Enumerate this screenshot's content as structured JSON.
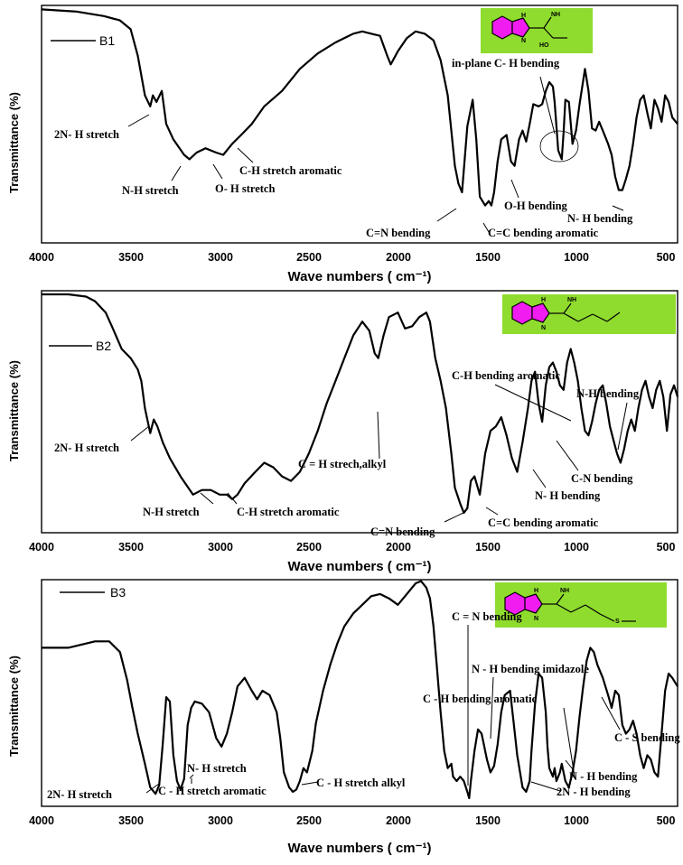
{
  "chart_data": [
    {
      "type": "line",
      "legend": "B1",
      "xlabel": "Wave numbers ( cm⁻¹)",
      "ylabel": "Transmittance (%)",
      "xlim": [
        4000,
        430
      ],
      "ylim": [
        0,
        100
      ],
      "xticks": [
        "4000",
        "3500",
        "3000",
        "2500",
        "2000",
        "1500",
        "1000",
        "500"
      ],
      "annotations": [
        "2N- H stretch",
        "N-H stretch",
        "O- H stretch",
        "C-H stretch aromatic",
        "C=N bending",
        "C=C bending aromatic",
        "O-H bending",
        "N- H bending",
        "in-plane C- H bending"
      ],
      "series": [
        {
          "x": [
            4000,
            3800,
            3650,
            3560,
            3500,
            3460,
            3420,
            3390,
            3375,
            3355,
            3325,
            3300,
            3260,
            3200,
            3170,
            3130,
            3080,
            3020,
            2980,
            2930,
            2880,
            2820,
            2750,
            2650,
            2550,
            2450,
            2350,
            2250,
            2200,
            2150,
            2100,
            2060,
            2040,
            2000,
            1950,
            1900,
            1850,
            1800,
            1760,
            1720,
            1680,
            1660,
            1640,
            1610,
            1580,
            1560,
            1540,
            1510,
            1490,
            1475,
            1460,
            1440,
            1420,
            1390,
            1365,
            1345,
            1320,
            1300,
            1280,
            1260,
            1240,
            1210,
            1190,
            1170,
            1150,
            1130,
            1120,
            1100,
            1080,
            1070,
            1060,
            1040,
            1020,
            1000,
            980,
            950,
            930,
            910,
            890,
            870,
            850,
            820,
            800,
            780,
            760,
            740,
            720,
            700,
            680,
            660,
            640,
            620,
            600,
            580,
            560,
            540,
            520,
            500,
            480,
            460,
            430
          ],
          "y": [
            99,
            98,
            96,
            94,
            90,
            78,
            60,
            55,
            60,
            57,
            62,
            47,
            40,
            33,
            31,
            34,
            36,
            34,
            33,
            38,
            42,
            47,
            55,
            62,
            72,
            79,
            84,
            88,
            89,
            88,
            87,
            78,
            74,
            80,
            86,
            89,
            88,
            85,
            76,
            60,
            28,
            20,
            16,
            46,
            58,
            40,
            14,
            10,
            12,
            10,
            16,
            30,
            40,
            42,
            30,
            28,
            40,
            44,
            39,
            47,
            56,
            55,
            56,
            62,
            66,
            64,
            57,
            35,
            31,
            43,
            58,
            57,
            38,
            44,
            56,
            72,
            62,
            45,
            44,
            48,
            44,
            38,
            33,
            23,
            17,
            17,
            22,
            28,
            38,
            50,
            58,
            60,
            52,
            45,
            58,
            54,
            48,
            60,
            57,
            50,
            47
          ]
        }
      ]
    },
    {
      "type": "line",
      "legend": "B2",
      "xlabel": "Wave numbers ( cm⁻¹)",
      "ylabel": "Transmittance (%)",
      "xlim": [
        4000,
        430
      ],
      "ylim": [
        0,
        100
      ],
      "xticks": [
        "4000",
        "3500",
        "3000",
        "2500",
        "2000",
        "1500",
        "1000",
        "500"
      ],
      "annotations": [
        "2N- H stretch",
        "N-H stretch",
        "C-H stretch aromatic",
        "C = H strech,alkyl",
        "C=N bending",
        "C=C bending aromatic",
        "C-H bending aromatic",
        "N-H bending",
        "C-N bending",
        "N- H bending"
      ],
      "series": [
        {
          "x": [
            4000,
            3850,
            3750,
            3700,
            3640,
            3600,
            3550,
            3500,
            3460,
            3440,
            3420,
            3390,
            3370,
            3350,
            3320,
            3280,
            3220,
            3150,
            3100,
            3050,
            3000,
            2960,
            2930,
            2900,
            2860,
            2800,
            2750,
            2700,
            2650,
            2600,
            2550,
            2500,
            2450,
            2400,
            2350,
            2300,
            2250,
            2200,
            2160,
            2130,
            2110,
            2080,
            2050,
            2000,
            1960,
            1920,
            1880,
            1840,
            1820,
            1790,
            1760,
            1730,
            1700,
            1680,
            1650,
            1630,
            1610,
            1590,
            1570,
            1540,
            1510,
            1480,
            1450,
            1420,
            1390,
            1360,
            1330,
            1300,
            1270,
            1250,
            1230,
            1210,
            1190,
            1170,
            1150,
            1130,
            1110,
            1090,
            1070,
            1050,
            1030,
            1010,
            990,
            970,
            950,
            930,
            910,
            890,
            870,
            850,
            830,
            810,
            790,
            770,
            750,
            730,
            710,
            690,
            670,
            650,
            630,
            610,
            590,
            570,
            550,
            530,
            510,
            490,
            470,
            450,
            430
          ],
          "y": [
            100,
            100,
            99,
            97,
            92,
            85,
            76,
            72,
            67,
            62,
            50,
            39,
            45,
            42,
            35,
            28,
            20,
            12,
            14,
            14,
            12,
            12,
            10,
            12,
            17,
            22,
            26,
            24,
            20,
            18,
            22,
            30,
            40,
            52,
            62,
            72,
            82,
            88,
            84,
            74,
            72,
            82,
            90,
            92,
            85,
            86,
            90,
            92,
            88,
            72,
            62,
            50,
            30,
            15,
            8,
            4,
            6,
            18,
            20,
            12,
            30,
            40,
            42,
            46,
            38,
            28,
            22,
            35,
            50,
            62,
            66,
            52,
            44,
            60,
            68,
            70,
            66,
            60,
            58,
            70,
            76,
            70,
            62,
            50,
            40,
            38,
            44,
            52,
            58,
            60,
            52,
            42,
            36,
            30,
            26,
            32,
            40,
            45,
            40,
            50,
            58,
            62,
            55,
            50,
            58,
            62,
            55,
            40,
            56,
            60,
            55
          ]
        }
      ]
    },
    {
      "type": "line",
      "legend": "B3",
      "xlabel": "Wave numbers ( cm⁻¹)",
      "ylabel": "Transmittance (%)",
      "xlim": [
        4000,
        430
      ],
      "ylim": [
        0,
        100
      ],
      "xticks": [
        "4000",
        "3500",
        "3000",
        "2500",
        "2000",
        "1500",
        "1000",
        "500"
      ],
      "annotations": [
        "2N- H stretch",
        "C - H stretch aromatic",
        "N- H stretch",
        "C - H stretch alkyl",
        "C = N bending",
        "N - H bending imidazole",
        "C - H bending aromatic",
        "C - S bending",
        "N - H bending",
        "2N - H bending"
      ],
      "series": [
        {
          "x": [
            4000,
            3850,
            3700,
            3620,
            3560,
            3520,
            3490,
            3460,
            3420,
            3390,
            3360,
            3340,
            3320,
            3300,
            3280,
            3260,
            3240,
            3220,
            3200,
            3180,
            3160,
            3140,
            3100,
            3060,
            3020,
            2990,
            2960,
            2930,
            2900,
            2860,
            2820,
            2790,
            2760,
            2720,
            2680,
            2660,
            2640,
            2610,
            2590,
            2570,
            2550,
            2530,
            2510,
            2480,
            2460,
            2420,
            2380,
            2340,
            2300,
            2250,
            2200,
            2150,
            2100,
            2050,
            2000,
            1950,
            1900,
            1870,
            1840,
            1820,
            1800,
            1780,
            1760,
            1740,
            1720,
            1700,
            1690,
            1670,
            1650,
            1630,
            1610,
            1600,
            1590,
            1570,
            1550,
            1530,
            1500,
            1480,
            1460,
            1440,
            1420,
            1400,
            1370,
            1350,
            1330,
            1300,
            1280,
            1260,
            1250,
            1230,
            1210,
            1190,
            1170,
            1160,
            1150,
            1130,
            1120,
            1110,
            1090,
            1080,
            1060,
            1040,
            1020,
            1000,
            980,
            960,
            940,
            920,
            900,
            880,
            850,
            820,
            800,
            780,
            760,
            740,
            720,
            700,
            680,
            660,
            640,
            620,
            600,
            580,
            560,
            540,
            520,
            500,
            480,
            460,
            430
          ],
          "y": [
            70,
            70,
            73,
            73,
            68,
            55,
            42,
            30,
            16,
            5,
            2,
            6,
            25,
            47,
            45,
            20,
            8,
            4,
            9,
            34,
            42,
            45,
            44,
            40,
            28,
            24,
            30,
            40,
            52,
            56,
            50,
            46,
            50,
            48,
            40,
            28,
            12,
            5,
            3,
            4,
            8,
            14,
            12,
            22,
            35,
            50,
            62,
            72,
            80,
            86,
            90,
            94,
            95,
            93,
            90,
            95,
            100,
            101,
            98,
            93,
            80,
            60,
            40,
            22,
            14,
            16,
            10,
            8,
            10,
            8,
            3,
            0,
            8,
            22,
            32,
            30,
            18,
            12,
            15,
            25,
            40,
            48,
            50,
            35,
            20,
            5,
            3,
            8,
            22,
            44,
            58,
            56,
            40,
            24,
            14,
            10,
            14,
            8,
            12,
            16,
            8,
            5,
            12,
            22,
            38,
            52,
            64,
            70,
            68,
            62,
            56,
            48,
            42,
            50,
            48,
            34,
            30,
            32,
            36,
            30,
            20,
            14,
            20,
            18,
            12,
            10,
            30,
            50,
            58,
            56,
            52
          ]
        }
      ]
    }
  ]
}
